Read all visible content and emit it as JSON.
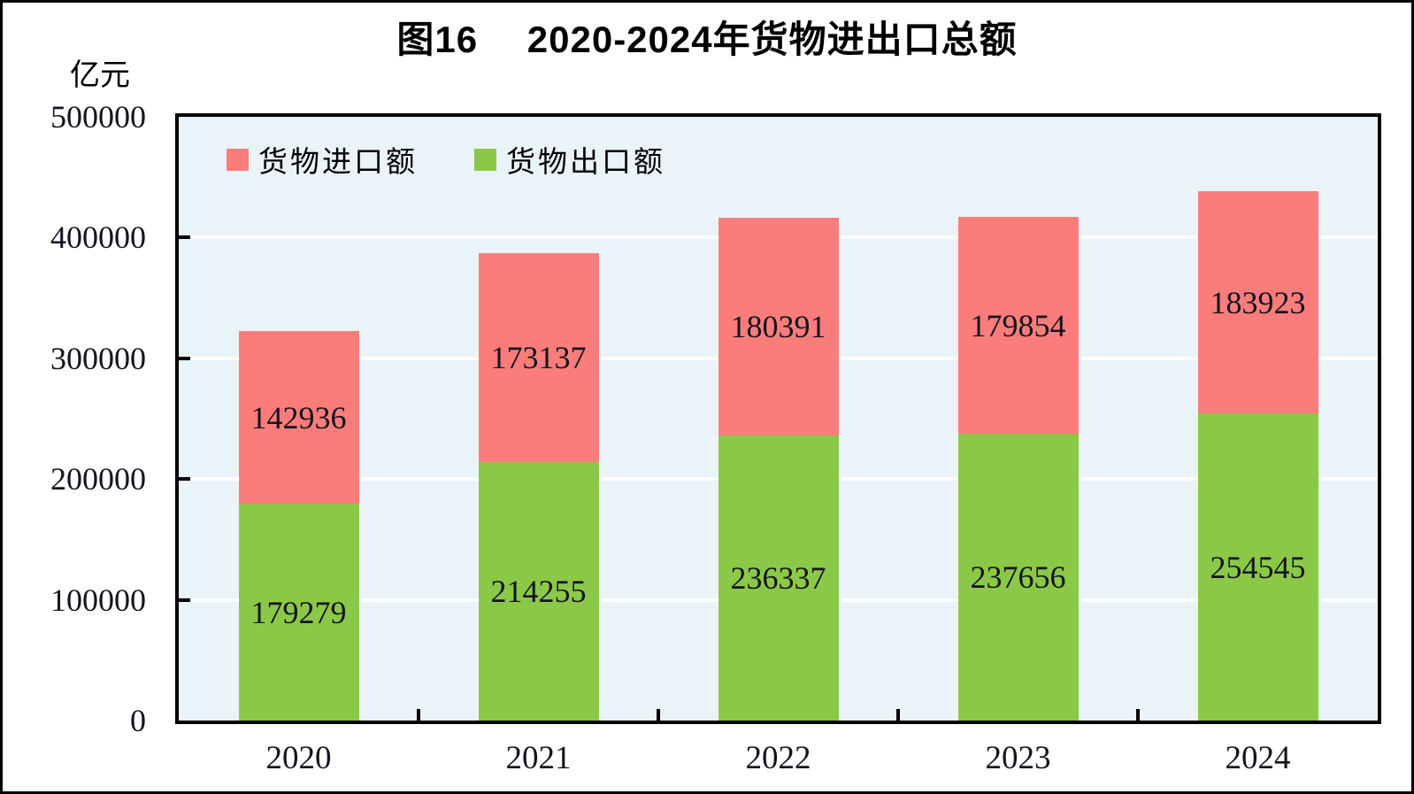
{
  "page": {
    "background": "#ffffff",
    "outer_border_color": "#000000"
  },
  "chart_data": {
    "type": "bar",
    "stacked": true,
    "title": "图16　 2020-2024年货物进出口总额",
    "unit_label": "亿元",
    "categories": [
      "2020",
      "2021",
      "2022",
      "2023",
      "2024"
    ],
    "series": [
      {
        "name": "货物进口额",
        "color": "#FB7D7B",
        "values": [
          142936,
          173137,
          180391,
          179854,
          183923
        ]
      },
      {
        "name": "货物出口额",
        "color": "#8CC848",
        "values": [
          179279,
          214255,
          236337,
          237656,
          254545
        ]
      }
    ],
    "stack_bottom_to_top": [
      "货物出口额",
      "货物进口额"
    ],
    "totals": [
      322215,
      387392,
      416728,
      417510,
      438468
    ],
    "ylim": [
      0,
      500000
    ],
    "ytick_step": 100000,
    "ytick_labels": [
      "0",
      "100000",
      "200000",
      "300000",
      "400000",
      "500000"
    ],
    "grid": true,
    "grid_color": "#ffffff",
    "plot_bg_color": "#EAF3F8",
    "axis_color": "#000000",
    "value_label_color": "#141420",
    "legend_position": "top-left"
  }
}
